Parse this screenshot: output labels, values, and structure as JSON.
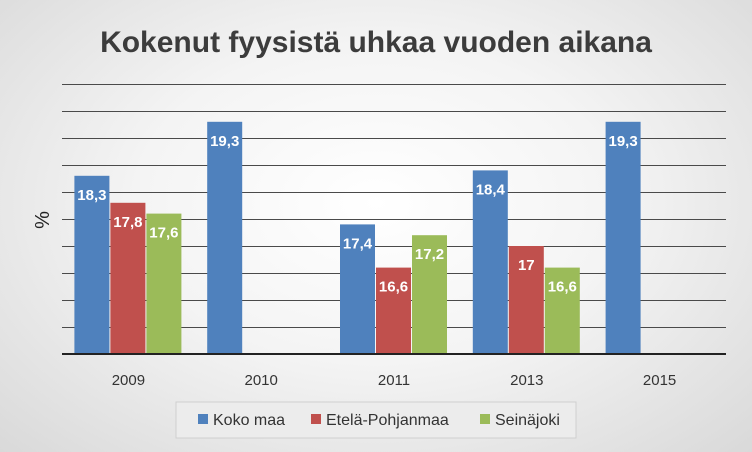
{
  "chart_data": {
    "type": "bar",
    "title": "Kokenut fyysistä uhkaa vuoden aikana",
    "xlabel": "",
    "ylabel": "%",
    "categories": [
      "2009",
      "2010",
      "2011",
      "2013",
      "2015"
    ],
    "series": [
      {
        "name": "Koko maa",
        "color": "#4f81bd",
        "values": [
          18.3,
          19.3,
          17.4,
          18.4,
          19.3
        ],
        "labels": [
          "18,3",
          "19,3",
          "17,4",
          "18,4",
          "19,3"
        ]
      },
      {
        "name": "Etelä-Pohjanmaa",
        "color": "#c0504d",
        "values": [
          17.8,
          null,
          16.6,
          17,
          null
        ],
        "labels": [
          "17,8",
          "",
          "16,6",
          "17",
          ""
        ]
      },
      {
        "name": "Seinäjoki",
        "color": "#9bbb59",
        "values": [
          17.6,
          null,
          17.2,
          16.6,
          null
        ],
        "labels": [
          "17,6",
          "",
          "17,2",
          "16,6",
          ""
        ]
      }
    ],
    "ylim": [
      15,
      20
    ],
    "y_gridline_step": 0.5,
    "y_tick_labels_shown": false,
    "grid": true,
    "legend_position": "bottom"
  }
}
